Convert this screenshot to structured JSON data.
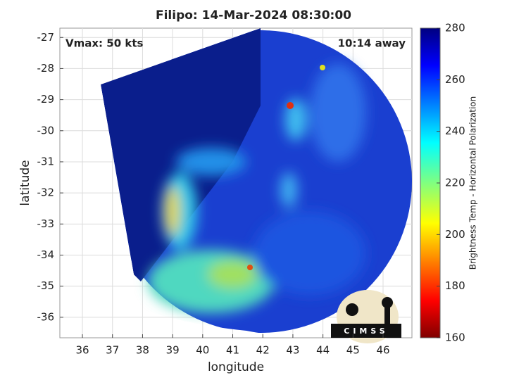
{
  "title": "Filipo: 14-Mar-2024 08:30:00",
  "annotations": {
    "vmax": "Vmax: 50 kts",
    "time_away": "10:14 away"
  },
  "map": {
    "xlabel": "longitude",
    "ylabel": "latitude",
    "xlim": [
      35.25,
      46.96
    ],
    "ylim": [
      -36.66,
      -26.7
    ],
    "xticks": [
      36,
      37,
      38,
      39,
      40,
      41,
      42,
      43,
      44,
      45,
      46
    ],
    "yticks": [
      -36,
      -35,
      -34,
      -33,
      -32,
      -31,
      -30,
      -29,
      -28,
      -27
    ],
    "grid": true
  },
  "colorbar": {
    "label": "Brightness Temp - Horizontal Polarization",
    "lim": [
      160,
      280
    ],
    "ticks": [
      160,
      180,
      200,
      220,
      240,
      260,
      280
    ]
  },
  "logo": "CIMSS"
}
